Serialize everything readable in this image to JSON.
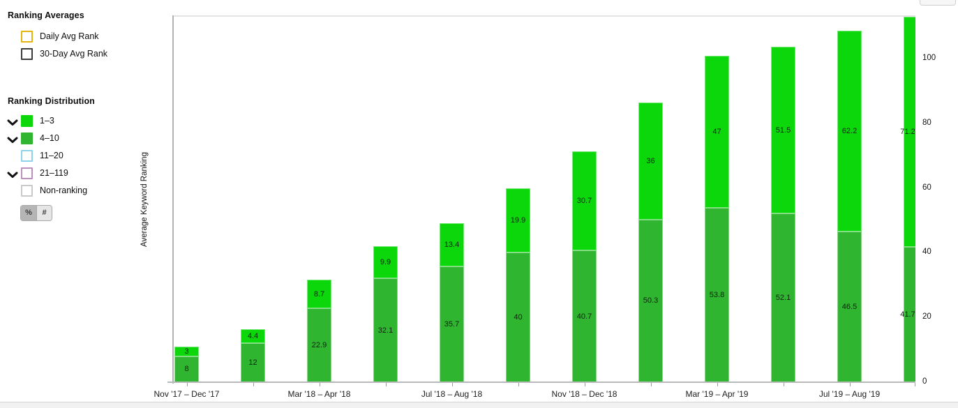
{
  "sidebar": {
    "ranking_averages": {
      "title": "Ranking Averages",
      "items": [
        {
          "label": "Daily Avg Rank",
          "border": "#e5b40e",
          "checked": false
        },
        {
          "label": "30-Day Avg Rank",
          "border": "#3c3c3c",
          "checked": false
        }
      ]
    },
    "ranking_distribution": {
      "title": "Ranking Distribution",
      "items": [
        {
          "label": "1–3",
          "fill": "#0bd70b",
          "border": "#0bd70b",
          "expandable": true
        },
        {
          "label": "4–10",
          "fill": "#2fb52f",
          "border": "#2fb52f",
          "expandable": true
        },
        {
          "label": "11–20",
          "fill": "#ffffff",
          "border": "#8ed2ec",
          "expandable": false
        },
        {
          "label": "21–119",
          "fill": "#ffffff",
          "border": "#bd90bd",
          "expandable": true
        },
        {
          "label": "Non-ranking",
          "fill": "#ffffff",
          "border": "#c9c9c9",
          "expandable": false
        }
      ]
    },
    "unit_toggle": {
      "percent_label": "%",
      "count_label": "#",
      "selected": "%"
    }
  },
  "chart_data": {
    "type": "bar",
    "stacked": true,
    "ylabel": "Average Keyword Ranking",
    "categories": [
      "Nov '17 – Dec '17",
      "",
      "Mar '18 – Apr '18",
      "",
      "Jul '18 – Aug '18",
      "",
      "Nov '18 – Dec '18",
      "",
      "Mar '19 – Apr '19",
      "",
      "Jul '19 – Aug '19",
      ""
    ],
    "series": [
      {
        "name": "4-10",
        "color": "#2fb52f",
        "values": [
          8,
          12,
          22.9,
          32.1,
          35.7,
          40,
          40.7,
          50.3,
          53.8,
          52.1,
          46.5,
          41.7
        ]
      },
      {
        "name": "1-3",
        "color": "#0bd70b",
        "values": [
          3,
          4.4,
          8.7,
          9.9,
          13.4,
          19.9,
          30.7,
          36,
          47,
          51.5,
          62.2,
          71.2
        ]
      }
    ],
    "y_axis": {
      "side": "right",
      "ticks": [
        0,
        20,
        40,
        60,
        80,
        100
      ],
      "max": 112.9
    },
    "legend_position": "left",
    "grid": false
  }
}
